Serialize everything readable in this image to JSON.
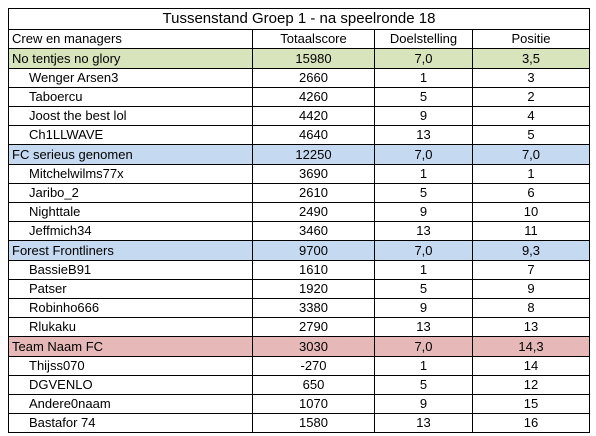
{
  "title": "Tussenstand Groep 1 - na speelronde 18",
  "headers": [
    "Crew en managers",
    "Totaalscore",
    "Doelstelling",
    "Positie"
  ],
  "colors": {
    "team_1": "#d8e4bc",
    "team_2": "#c5d9f1",
    "team_3": "#c5d9f1",
    "team_4": "#e6b9b8"
  },
  "teams": [
    {
      "name": "No tentjes no glory",
      "total": "15980",
      "target": "7,0",
      "position": "3,5",
      "members": [
        {
          "name": "Wenger Arsen3",
          "total": "2660",
          "target": "1",
          "position": "3"
        },
        {
          "name": "Taboercu",
          "total": "4260",
          "target": "5",
          "position": "2"
        },
        {
          "name": "Joost the best lol",
          "total": "4420",
          "target": "9",
          "position": "4"
        },
        {
          "name": "Ch1LLWAVE",
          "total": "4640",
          "target": "13",
          "position": "5"
        }
      ]
    },
    {
      "name": "FC serieus genomen",
      "total": "12250",
      "target": "7,0",
      "position": "7,0",
      "members": [
        {
          "name": "Mitchelwilms77x",
          "total": "3690",
          "target": "1",
          "position": "1"
        },
        {
          "name": "Jaribo_2",
          "total": "2610",
          "target": "5",
          "position": "6"
        },
        {
          "name": "Nighttale",
          "total": "2490",
          "target": "9",
          "position": "10"
        },
        {
          "name": "Jeffmich34",
          "total": "3460",
          "target": "13",
          "position": "11"
        }
      ]
    },
    {
      "name": "Forest Frontliners",
      "total": "9700",
      "target": "7,0",
      "position": "9,3",
      "members": [
        {
          "name": "BassieB91",
          "total": "1610",
          "target": "1",
          "position": "7"
        },
        {
          "name": "Patser",
          "total": "1920",
          "target": "5",
          "position": "9"
        },
        {
          "name": "Robinho666",
          "total": "3380",
          "target": "9",
          "position": "8"
        },
        {
          "name": "Rlukaku",
          "total": "2790",
          "target": "13",
          "position": "13"
        }
      ]
    },
    {
      "name": "Team Naam FC",
      "total": "3030",
      "target": "7,0",
      "position": "14,3",
      "members": [
        {
          "name": "Thijss070",
          "total": "-270",
          "target": "1",
          "position": "14"
        },
        {
          "name": "DGVENLO",
          "total": "650",
          "target": "5",
          "position": "12"
        },
        {
          "name": "Andere0naam",
          "total": "1070",
          "target": "9",
          "position": "15"
        },
        {
          "name": "Bastafor 74",
          "total": "1580",
          "target": "13",
          "position": "16"
        }
      ]
    }
  ]
}
